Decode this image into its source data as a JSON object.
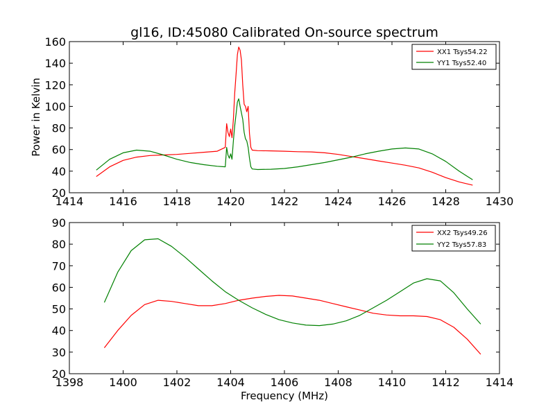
{
  "title": "gl16, ID:45080 Calibrated On-source spectrum",
  "chart_data": [
    {
      "type": "line",
      "title": "gl16, ID:45080 Calibrated On-source spectrum",
      "xlabel": "",
      "ylabel": "Power in Kelvin",
      "xlim": [
        1414,
        1430
      ],
      "ylim": [
        20,
        160
      ],
      "xticks": [
        "1414",
        "1416",
        "1418",
        "1420",
        "1422",
        "1424",
        "1426",
        "1428",
        "1430"
      ],
      "yticks": [
        "20",
        "40",
        "60",
        "80",
        "100",
        "120",
        "140",
        "160"
      ],
      "legend": "top-right",
      "grid": false,
      "series": [
        {
          "name": "XX1 Tsys54.22",
          "color": "#ff0000",
          "x": [
            1415.0,
            1415.5,
            1416.0,
            1416.5,
            1417.0,
            1417.5,
            1418.0,
            1418.5,
            1419.0,
            1419.5,
            1419.8,
            1419.85,
            1419.9,
            1419.95,
            1420.0,
            1420.05,
            1420.1,
            1420.15,
            1420.2,
            1420.25,
            1420.3,
            1420.35,
            1420.4,
            1420.45,
            1420.5,
            1420.55,
            1420.6,
            1420.65,
            1420.7,
            1420.75,
            1420.8,
            1421.0,
            1421.5,
            1422.0,
            1422.5,
            1423.0,
            1423.5,
            1424.0,
            1424.5,
            1425.0,
            1425.5,
            1426.0,
            1426.5,
            1427.0,
            1427.5,
            1428.0,
            1428.5,
            1429.0
          ],
          "values": [
            35,
            44,
            50,
            53,
            54.5,
            55,
            55.5,
            56.5,
            57.5,
            58.5,
            62,
            84,
            76,
            72,
            79,
            71,
            88,
            112,
            130,
            148,
            155,
            152,
            143,
            120,
            102,
            100,
            95,
            100,
            75,
            62,
            59.5,
            59,
            58.8,
            58.5,
            58,
            57.8,
            57,
            55.5,
            53.5,
            51.5,
            49.5,
            47.5,
            45.5,
            43,
            39,
            34,
            30,
            27
          ]
        },
        {
          "name": "YY1 Tsys52.40",
          "color": "#008000",
          "x": [
            1415.0,
            1415.5,
            1416.0,
            1416.5,
            1417.0,
            1417.5,
            1418.0,
            1418.5,
            1419.0,
            1419.5,
            1419.8,
            1419.85,
            1419.9,
            1419.95,
            1420.0,
            1420.05,
            1420.1,
            1420.15,
            1420.2,
            1420.25,
            1420.3,
            1420.35,
            1420.4,
            1420.45,
            1420.5,
            1420.55,
            1420.6,
            1420.65,
            1420.7,
            1420.75,
            1420.8,
            1421.0,
            1421.5,
            1422.0,
            1422.5,
            1423.0,
            1423.5,
            1424.0,
            1424.5,
            1425.0,
            1425.5,
            1426.0,
            1426.5,
            1427.0,
            1427.5,
            1428.0,
            1428.5,
            1429.0
          ],
          "values": [
            41,
            51,
            57,
            59.5,
            58.5,
            55,
            51,
            48,
            46,
            44.5,
            44,
            62,
            55,
            52,
            56,
            51,
            68,
            82,
            93,
            104,
            107,
            100,
            94,
            88,
            76,
            70,
            68,
            62,
            52,
            44,
            42,
            41.5,
            41.8,
            42.5,
            44,
            46,
            48,
            50.5,
            53,
            56,
            58.5,
            60.5,
            61.5,
            60.5,
            56,
            49,
            40,
            32
          ]
        }
      ]
    },
    {
      "type": "line",
      "title": "",
      "xlabel": "Frequency (MHz)",
      "ylabel": "",
      "xlim": [
        1398,
        1414
      ],
      "ylim": [
        20,
        90
      ],
      "xticks": [
        "1398",
        "1400",
        "1402",
        "1404",
        "1406",
        "1408",
        "1410",
        "1412",
        "1414"
      ],
      "yticks": [
        "20",
        "30",
        "40",
        "50",
        "60",
        "70",
        "80",
        "90"
      ],
      "legend": "top-right",
      "grid": false,
      "series": [
        {
          "name": "XX2 Tsys49.26",
          "color": "#ff0000",
          "x": [
            1399.3,
            1399.8,
            1400.3,
            1400.8,
            1401.3,
            1401.8,
            1402.3,
            1402.8,
            1403.3,
            1403.8,
            1404.3,
            1404.8,
            1405.3,
            1405.8,
            1406.3,
            1406.8,
            1407.3,
            1407.8,
            1408.3,
            1408.8,
            1409.3,
            1409.8,
            1410.3,
            1410.8,
            1411.3,
            1411.8,
            1412.3,
            1412.8,
            1413.3
          ],
          "values": [
            32,
            40,
            47,
            52,
            54,
            53.5,
            52.5,
            51.5,
            51.5,
            52.5,
            54,
            55,
            55.8,
            56.3,
            56,
            55,
            54,
            52.5,
            51,
            49.5,
            48,
            47.2,
            46.8,
            46.8,
            46.5,
            45,
            41.5,
            36,
            29
          ]
        },
        {
          "name": "YY2 Tsys57.83",
          "color": "#008000",
          "x": [
            1399.3,
            1399.8,
            1400.3,
            1400.8,
            1401.3,
            1401.8,
            1402.3,
            1402.8,
            1403.3,
            1403.8,
            1404.3,
            1404.8,
            1405.3,
            1405.8,
            1406.3,
            1406.8,
            1407.3,
            1407.8,
            1408.3,
            1408.8,
            1409.3,
            1409.8,
            1410.3,
            1410.8,
            1411.3,
            1411.8,
            1412.3,
            1412.8,
            1413.3
          ],
          "values": [
            53,
            67,
            77,
            82,
            82.5,
            79,
            74,
            68.5,
            63,
            58,
            54,
            50.5,
            47.5,
            45,
            43.5,
            42.5,
            42.3,
            43,
            44.5,
            47,
            50.5,
            54,
            58,
            62,
            64,
            63,
            57.5,
            50,
            43
          ]
        }
      ]
    }
  ]
}
